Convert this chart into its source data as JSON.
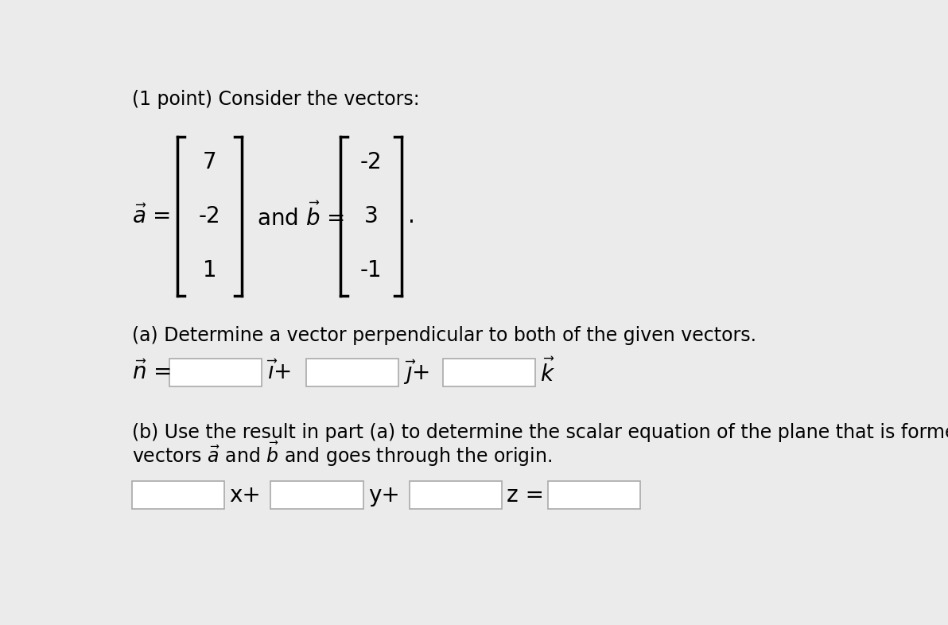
{
  "background_color": "#ebebeb",
  "title_text": "(1 point) Consider the vectors:",
  "vec_a_label": "$\\vec{a}$ =",
  "vec_a_values": [
    "7",
    "-2",
    "1"
  ],
  "and_b_label": "and $\\vec{b}$ =",
  "vec_b_values": [
    "-2",
    "3",
    "-1"
  ],
  "period": ".",
  "part_a_text": "(a) Determine a vector perpendicular to both of the given vectors.",
  "n_label": "$\\vec{n}$ =",
  "i_label": "$\\vec{\\imath}$+",
  "j_label": "$\\vec{\\jmath}$+",
  "k_label": "$\\vec{k}$",
  "part_b_text1": "(b) Use the result in part (a) to determine the scalar equation of the plane that is formed by",
  "part_b_text2": "vectors $\\vec{a}$ and $\\vec{b}$ and goes through the origin.",
  "x_label": "x+",
  "y_label": "y+",
  "z_label": "z =",
  "font_size_main": 17,
  "font_size_large": 20,
  "box_color": "white",
  "box_edge_color": "#aaaaaa"
}
